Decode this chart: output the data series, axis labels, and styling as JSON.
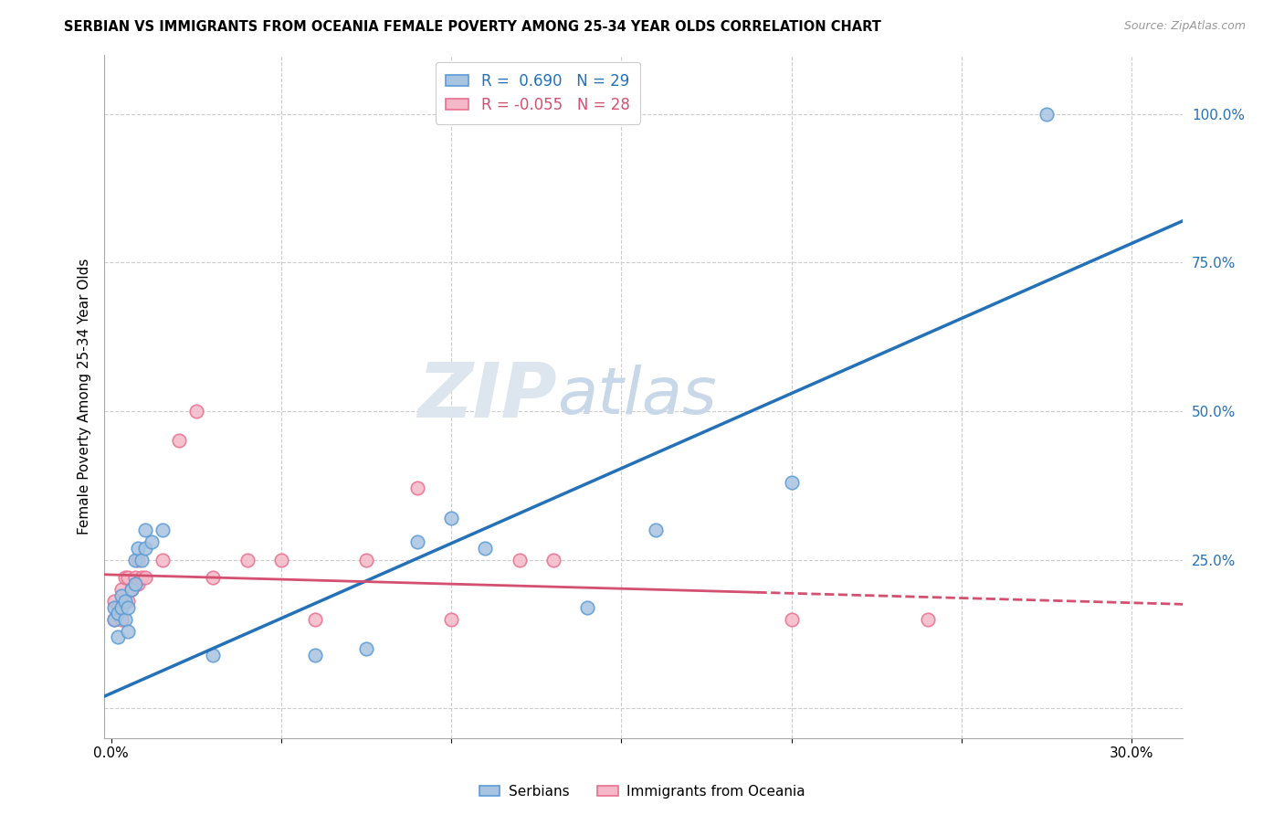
{
  "title": "SERBIAN VS IMMIGRANTS FROM OCEANIA FEMALE POVERTY AMONG 25-34 YEAR OLDS CORRELATION CHART",
  "source": "Source: ZipAtlas.com",
  "xlabel_ticks": [
    0.0,
    0.05,
    0.1,
    0.15,
    0.2,
    0.25,
    0.3
  ],
  "ylabel_right_ticks": [
    0.0,
    0.25,
    0.5,
    0.75,
    1.0
  ],
  "ylabel_right_labels": [
    "",
    "25.0%",
    "50.0%",
    "75.0%",
    "100.0%"
  ],
  "ylabel_label": "Female Poverty Among 25-34 Year Olds",
  "legend_serbian_R": "0.690",
  "legend_serbian_N": "29",
  "legend_oceania_R": "-0.055",
  "legend_oceania_N": "28",
  "legend_labels": [
    "Serbians",
    "Immigrants from Oceania"
  ],
  "serbian_color": "#a8c4e0",
  "serbian_edge_color": "#5b9bd5",
  "oceania_color": "#f4b8c8",
  "oceania_edge_color": "#e87090",
  "serbian_line_color": "#2471b8",
  "oceania_line_color": "#d45070",
  "background_color": "#ffffff",
  "grid_color": "#cccccc",
  "watermark_color": "#dde6ef",
  "xmin": -0.002,
  "xmax": 0.315,
  "ymin": -0.05,
  "ymax": 1.1,
  "serbian_x": [
    0.001,
    0.001,
    0.002,
    0.002,
    0.003,
    0.003,
    0.004,
    0.004,
    0.005,
    0.005,
    0.006,
    0.007,
    0.007,
    0.008,
    0.009,
    0.01,
    0.01,
    0.012,
    0.015,
    0.03,
    0.06,
    0.075,
    0.09,
    0.1,
    0.11,
    0.14,
    0.16,
    0.2,
    0.275
  ],
  "serbian_y": [
    0.15,
    0.17,
    0.12,
    0.16,
    0.17,
    0.19,
    0.15,
    0.18,
    0.13,
    0.17,
    0.2,
    0.21,
    0.25,
    0.27,
    0.25,
    0.27,
    0.3,
    0.28,
    0.3,
    0.09,
    0.09,
    0.1,
    0.28,
    0.32,
    0.27,
    0.17,
    0.3,
    0.38,
    1.0
  ],
  "oceania_x": [
    0.001,
    0.001,
    0.002,
    0.003,
    0.003,
    0.004,
    0.005,
    0.005,
    0.006,
    0.007,
    0.008,
    0.008,
    0.009,
    0.01,
    0.015,
    0.02,
    0.025,
    0.03,
    0.04,
    0.05,
    0.06,
    0.075,
    0.09,
    0.1,
    0.12,
    0.13,
    0.2,
    0.24
  ],
  "oceania_y": [
    0.15,
    0.18,
    0.17,
    0.15,
    0.2,
    0.22,
    0.18,
    0.22,
    0.2,
    0.22,
    0.21,
    0.25,
    0.22,
    0.22,
    0.25,
    0.45,
    0.5,
    0.22,
    0.25,
    0.25,
    0.15,
    0.25,
    0.37,
    0.15,
    0.25,
    0.25,
    0.15,
    0.15
  ],
  "marker_size": 110
}
